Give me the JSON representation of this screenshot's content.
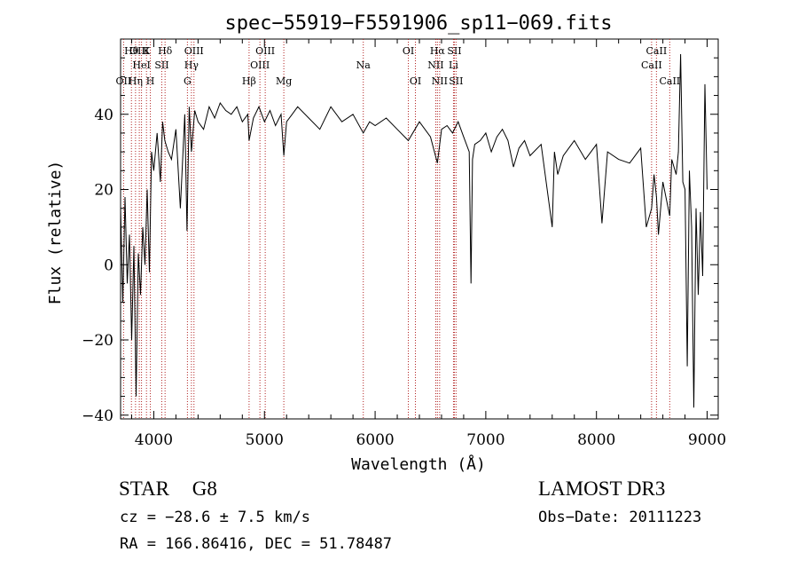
{
  "chart_data": {
    "type": "line",
    "title": "spec−55919−F5591906_sp11−069.fits",
    "xlabel": "Wavelength (Å)",
    "ylabel": "Flux (relative)",
    "xlim": [
      3700,
      9100
    ],
    "ylim": [
      -41,
      60
    ],
    "xticks": [
      4000,
      5000,
      6000,
      7000,
      8000,
      9000
    ],
    "xtick_labels": [
      "4000",
      "5000",
      "6000",
      "7000",
      "8000",
      "9000"
    ],
    "yticks": [
      -40,
      -20,
      0,
      20,
      40
    ],
    "ytick_labels": [
      "−40",
      "−20",
      "0",
      "20",
      "40"
    ],
    "grid": false,
    "series": [
      {
        "name": "spectrum",
        "x": [
          3700,
          3720,
          3740,
          3760,
          3780,
          3800,
          3820,
          3840,
          3860,
          3880,
          3900,
          3920,
          3940,
          3960,
          3980,
          4000,
          4030,
          4060,
          4080,
          4100,
          4130,
          4160,
          4200,
          4240,
          4280,
          4300,
          4320,
          4340,
          4370,
          4400,
          4450,
          4500,
          4550,
          4600,
          4650,
          4700,
          4750,
          4800,
          4850,
          4861,
          4900,
          4950,
          5000,
          5050,
          5100,
          5150,
          5175,
          5200,
          5250,
          5300,
          5400,
          5500,
          5600,
          5700,
          5800,
          5893,
          5950,
          6000,
          6100,
          6200,
          6300,
          6400,
          6500,
          6563,
          6600,
          6650,
          6700,
          6750,
          6800,
          6850,
          6866,
          6880,
          6900,
          6950,
          7000,
          7050,
          7100,
          7150,
          7200,
          7250,
          7300,
          7350,
          7400,
          7500,
          7600,
          7620,
          7650,
          7700,
          7800,
          7900,
          8000,
          8050,
          8100,
          8200,
          8300,
          8400,
          8450,
          8498,
          8520,
          8542,
          8560,
          8600,
          8662,
          8680,
          8700,
          8720,
          8740,
          8760,
          8780,
          8800,
          8820,
          8840,
          8860,
          8880,
          8900,
          8920,
          8940,
          8960,
          8980,
          9000
        ],
        "values": [
          15,
          -10,
          18,
          -5,
          8,
          -20,
          5,
          -35,
          3,
          -8,
          10,
          0,
          20,
          -2,
          30,
          25,
          35,
          22,
          38,
          33,
          30,
          28,
          36,
          15,
          40,
          9,
          42,
          30,
          41,
          38,
          36,
          42,
          39,
          43,
          41,
          40,
          42,
          38,
          40,
          33,
          39,
          42,
          38,
          41,
          37,
          40,
          29,
          38,
          40,
          42,
          39,
          36,
          42,
          38,
          40,
          35,
          38,
          37,
          39,
          36,
          33,
          38,
          34,
          27,
          36,
          37,
          35,
          38,
          34,
          30,
          -5,
          28,
          32,
          33,
          35,
          30,
          34,
          36,
          33,
          26,
          31,
          33,
          29,
          32,
          10,
          30,
          24,
          29,
          33,
          28,
          32,
          11,
          30,
          28,
          27,
          31,
          10,
          15,
          24,
          18,
          8,
          22,
          13,
          28,
          26,
          24,
          30,
          56,
          22,
          20,
          -27,
          25,
          10,
          -38,
          15,
          -8,
          14,
          -3,
          48,
          20
        ]
      }
    ],
    "lines": [
      {
        "label": "OII",
        "wave": 3727,
        "pos": "bottom"
      },
      {
        "label": "Hθ",
        "wave": 3798,
        "pos": "top"
      },
      {
        "label": "OIII",
        "wave": 3869,
        "pos": "top"
      },
      {
        "label": "Hη",
        "wave": 3835,
        "pos": "bottom"
      },
      {
        "label": "HeI",
        "wave": 3889,
        "pos": "middle"
      },
      {
        "label": "K",
        "wave": 3934,
        "pos": "top"
      },
      {
        "label": "H",
        "wave": 3969,
        "pos": "bottom"
      },
      {
        "label": "SII",
        "wave": 4072,
        "pos": "middle"
      },
      {
        "label": "Hδ",
        "wave": 4102,
        "pos": "top"
      },
      {
        "label": "G",
        "wave": 4304,
        "pos": "bottom"
      },
      {
        "label": "Hγ",
        "wave": 4340,
        "pos": "middle"
      },
      {
        "label": "OIII",
        "wave": 4363,
        "pos": "top"
      },
      {
        "label": "Hβ",
        "wave": 4861,
        "pos": "bottom"
      },
      {
        "label": "OIII",
        "wave": 4959,
        "pos": "middle"
      },
      {
        "label": "OIII",
        "wave": 5007,
        "pos": "top"
      },
      {
        "label": "Mg",
        "wave": 5175,
        "pos": "bottom"
      },
      {
        "label": "Na",
        "wave": 5893,
        "pos": "middle"
      },
      {
        "label": "OI",
        "wave": 6300,
        "pos": "top"
      },
      {
        "label": "OI",
        "wave": 6364,
        "pos": "bottom"
      },
      {
        "label": "NII",
        "wave": 6548,
        "pos": "middle"
      },
      {
        "label": "Hα",
        "wave": 6563,
        "pos": "top"
      },
      {
        "label": "NII",
        "wave": 6583,
        "pos": "bottom"
      },
      {
        "label": "Li",
        "wave": 6708,
        "pos": "middle"
      },
      {
        "label": "SII",
        "wave": 6716,
        "pos": "top"
      },
      {
        "label": "SII",
        "wave": 6731,
        "pos": "bottom"
      },
      {
        "label": "CaII",
        "wave": 8498,
        "pos": "middle"
      },
      {
        "label": "CaII",
        "wave": 8542,
        "pos": "top"
      },
      {
        "label": "CaII",
        "wave": 8662,
        "pos": "bottom"
      }
    ]
  },
  "info": {
    "class": "STAR",
    "subclass": "G8",
    "survey": "LAMOST DR3",
    "cz": "cz = −28.6 ± 7.5 km/s",
    "obs_date": "Obs−Date: 20111223",
    "coords": "RA = 166.86416, DEC =  51.78487"
  }
}
